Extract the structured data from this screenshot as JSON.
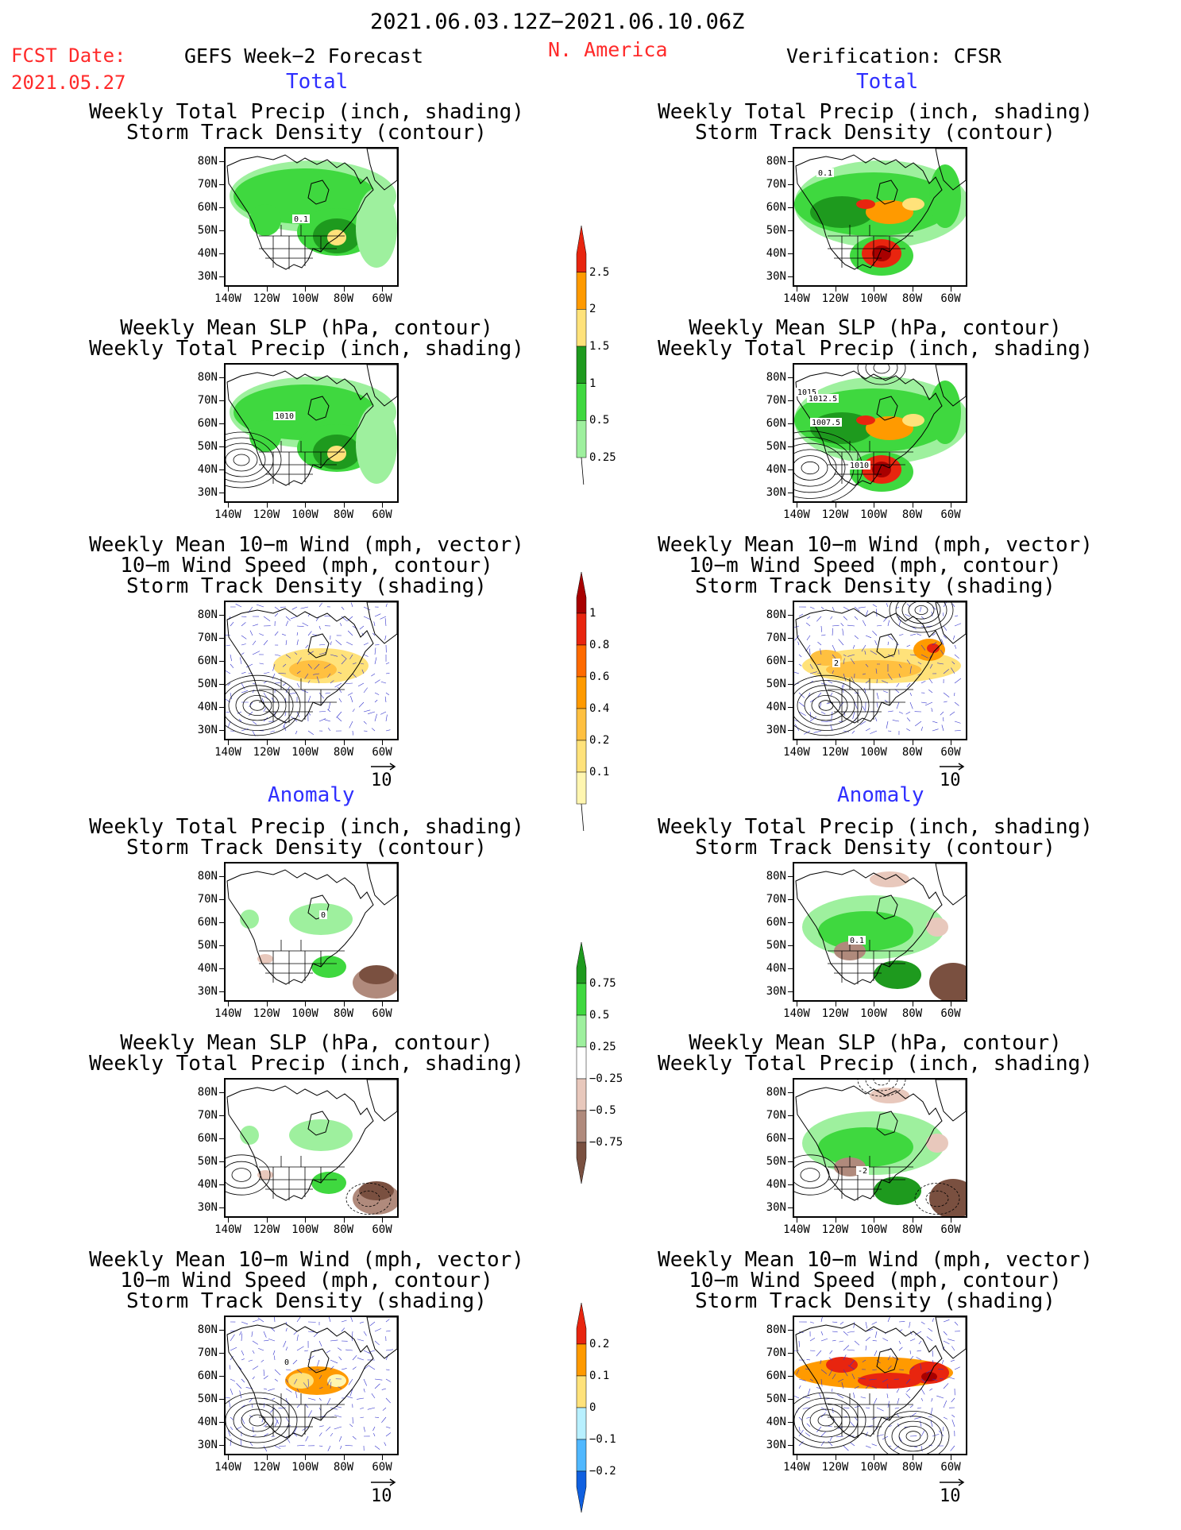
{
  "header": {
    "date_range": "2021.06.03.12Z−2021.06.10.06Z",
    "fcst_label": "FCST Date:",
    "fcst_date": "2021.05.27",
    "left_title": "GEFS Week−2 Forecast",
    "region": "N. America",
    "right_title": "Verification: CFSR"
  },
  "sections": {
    "total": "Total",
    "anomaly": "Anomaly"
  },
  "panel_titles": {
    "precip_track": [
      "Weekly Total Precip (inch, shading)",
      "Storm Track Density (contour)"
    ],
    "slp_precip": [
      "Weekly Mean SLP (hPa, contour)",
      "Weekly Total Precip (inch, shading)"
    ],
    "wind_track": [
      "Weekly Mean 10−m Wind (mph, vector)",
      "10−m Wind Speed (mph, contour)",
      "Storm Track Density (shading)"
    ]
  },
  "axes": {
    "lat_labels": [
      "80N",
      "70N",
      "60N",
      "50N",
      "40N",
      "30N"
    ],
    "lon_labels": [
      "140W",
      "120W",
      "100W",
      "80W",
      "60W"
    ]
  },
  "vector_ref": "10",
  "contour_labels": {
    "fcst_total_precip": "0.1",
    "verif_total_precip": "0.1",
    "fcst_total_slp": "1010",
    "verif_total_slp": [
      "1015",
      "1012.5",
      "1007.5",
      "1010"
    ],
    "verif_total_wind": "2",
    "fcst_anom_precip": "0",
    "verif_anom_precip": "0.1",
    "verif_anom_slp": "-2",
    "fcst_anom_wind": "0"
  },
  "colorbars": {
    "precip_total": {
      "labels": [
        "2.5",
        "2",
        "1.5",
        "1",
        "0.5",
        "0.25"
      ],
      "colors": [
        "#e8250f",
        "#ff9a00",
        "#ffe27a",
        "#1e9a1e",
        "#3fd83f",
        "#9ef09e"
      ]
    },
    "track_total": {
      "labels": [
        "1",
        "0.8",
        "0.6",
        "0.4",
        "0.2",
        "0.1"
      ],
      "colors": [
        "#a80000",
        "#e8250f",
        "#ff6a00",
        "#ff9a00",
        "#ffc040",
        "#ffe27a",
        "#fff6b0"
      ]
    },
    "precip_anom": {
      "labels": [
        "0.75",
        "0.5",
        "0.25",
        "−0.25",
        "−0.5",
        "−0.75"
      ],
      "colors": [
        "#1e9a1e",
        "#3fd83f",
        "#9ef09e",
        "#ffffff",
        "#e8c8bc",
        "#b08a7c",
        "#7a5040"
      ]
    },
    "track_anom": {
      "labels": [
        "0.2",
        "0.1",
        "0",
        "−0.1",
        "−0.2"
      ],
      "colors": [
        "#e8250f",
        "#ff9a00",
        "#ffe27a",
        "#b8f0ff",
        "#50b8ff",
        "#1060e0"
      ]
    }
  }
}
